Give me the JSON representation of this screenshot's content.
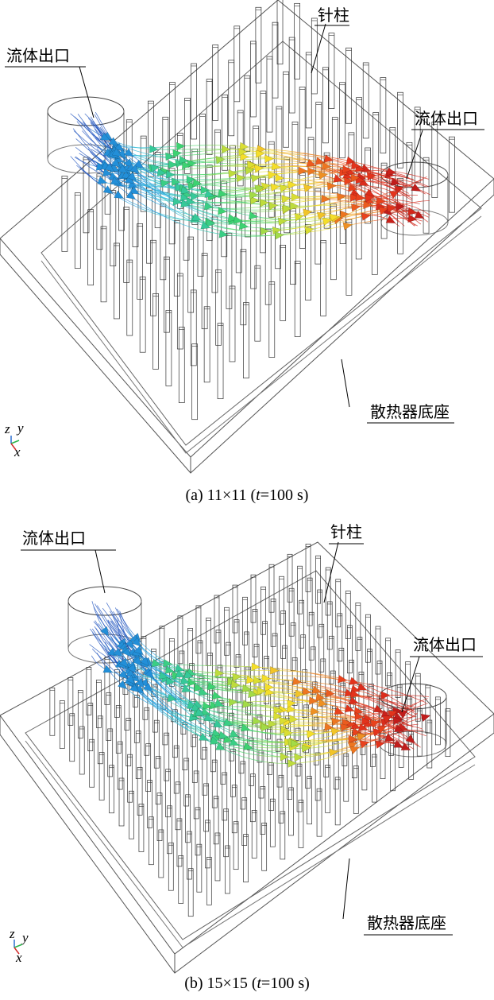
{
  "panels": [
    {
      "id": "a",
      "caption_prefix": "(a) 11×11 (",
      "caption_t": "t",
      "caption_suffix": "=100 s)",
      "labels": {
        "outlet_left": "流体出口",
        "pin": "针柱",
        "outlet_right": "流体出口",
        "base": "散热器底座"
      },
      "axes": {
        "z": "z",
        "y": "y",
        "x": "x"
      },
      "pin_grid": 11
    },
    {
      "id": "b",
      "caption_prefix": "(b) 15×15 (",
      "caption_t": "t",
      "caption_suffix": "=100 s)",
      "labels": {
        "outlet_left": "流体出口",
        "pin": "针柱",
        "outlet_right": "流体出口",
        "base": "散热器底座"
      },
      "axes": {
        "z": "z",
        "y": "y",
        "x": "x"
      },
      "pin_grid": 15
    }
  ],
  "colors": {
    "cold": "#1a2fb0",
    "cool": "#27b6e8",
    "mid": "#3fd46a",
    "warm": "#f4e02a",
    "hot": "#e8361c",
    "hottest": "#b0101a"
  }
}
